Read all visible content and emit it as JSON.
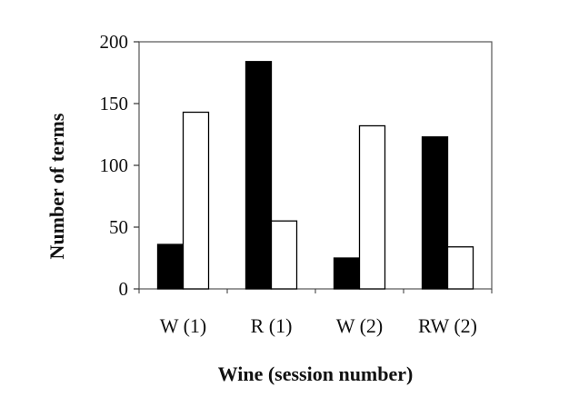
{
  "chart_data": {
    "type": "bar",
    "categories": [
      "W (1)",
      "R (1)",
      "W (2)",
      "RW (2)"
    ],
    "series": [
      {
        "values": [
          36,
          184,
          25,
          123
        ],
        "color": "#000000"
      },
      {
        "values": [
          143,
          55,
          132,
          34
        ],
        "color": "#ffffff"
      }
    ],
    "xlabel": "Wine (session number)",
    "ylabel": "Number of terms",
    "ylim": [
      0,
      200
    ],
    "yticks": [
      0,
      50,
      100,
      150,
      200
    ],
    "grid": false,
    "legend": "none"
  }
}
